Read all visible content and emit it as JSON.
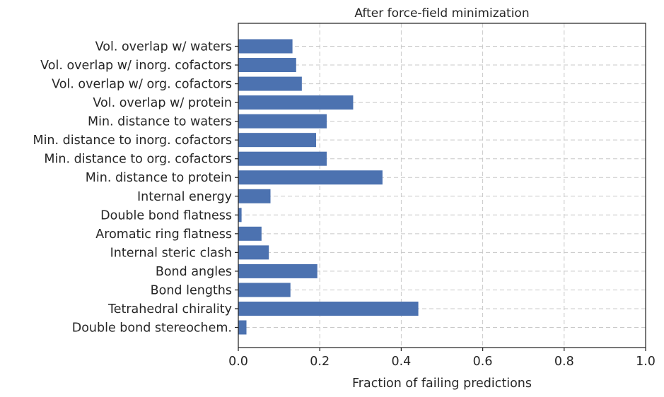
{
  "chart_data": {
    "type": "bar",
    "orientation": "horizontal",
    "title": "After force-field minimization",
    "xlabel": "Fraction of failing predictions",
    "ylabel": "",
    "xlim": [
      0.0,
      1.0
    ],
    "xticks": [
      "0.0",
      "0.2",
      "0.4",
      "0.6",
      "0.8",
      "1.0"
    ],
    "grid": true,
    "categories": [
      "Double bond stereochem.",
      "Tetrahedral chirality",
      "Bond lengths",
      "Bond angles",
      "Internal steric clash",
      "Aromatic ring flatness",
      "Double bond flatness",
      "Internal energy",
      "Min. distance to protein",
      "Min. distance to org. cofactors",
      "Min. distance to inorg. cofactors",
      "Min. distance to waters",
      "Vol. overlap w/ protein",
      "Vol. overlap w/ org. cofactors",
      "Vol. overlap w/ inorg. cofactors",
      "Vol. overlap w/ waters"
    ],
    "values": [
      0.02,
      0.442,
      0.128,
      0.194,
      0.075,
      0.057,
      0.008,
      0.079,
      0.354,
      0.217,
      0.191,
      0.217,
      0.282,
      0.156,
      0.142,
      0.133
    ],
    "colors": {
      "bar": "#4c72b0",
      "grid": "#c8c8c8",
      "text": "#262626"
    }
  }
}
